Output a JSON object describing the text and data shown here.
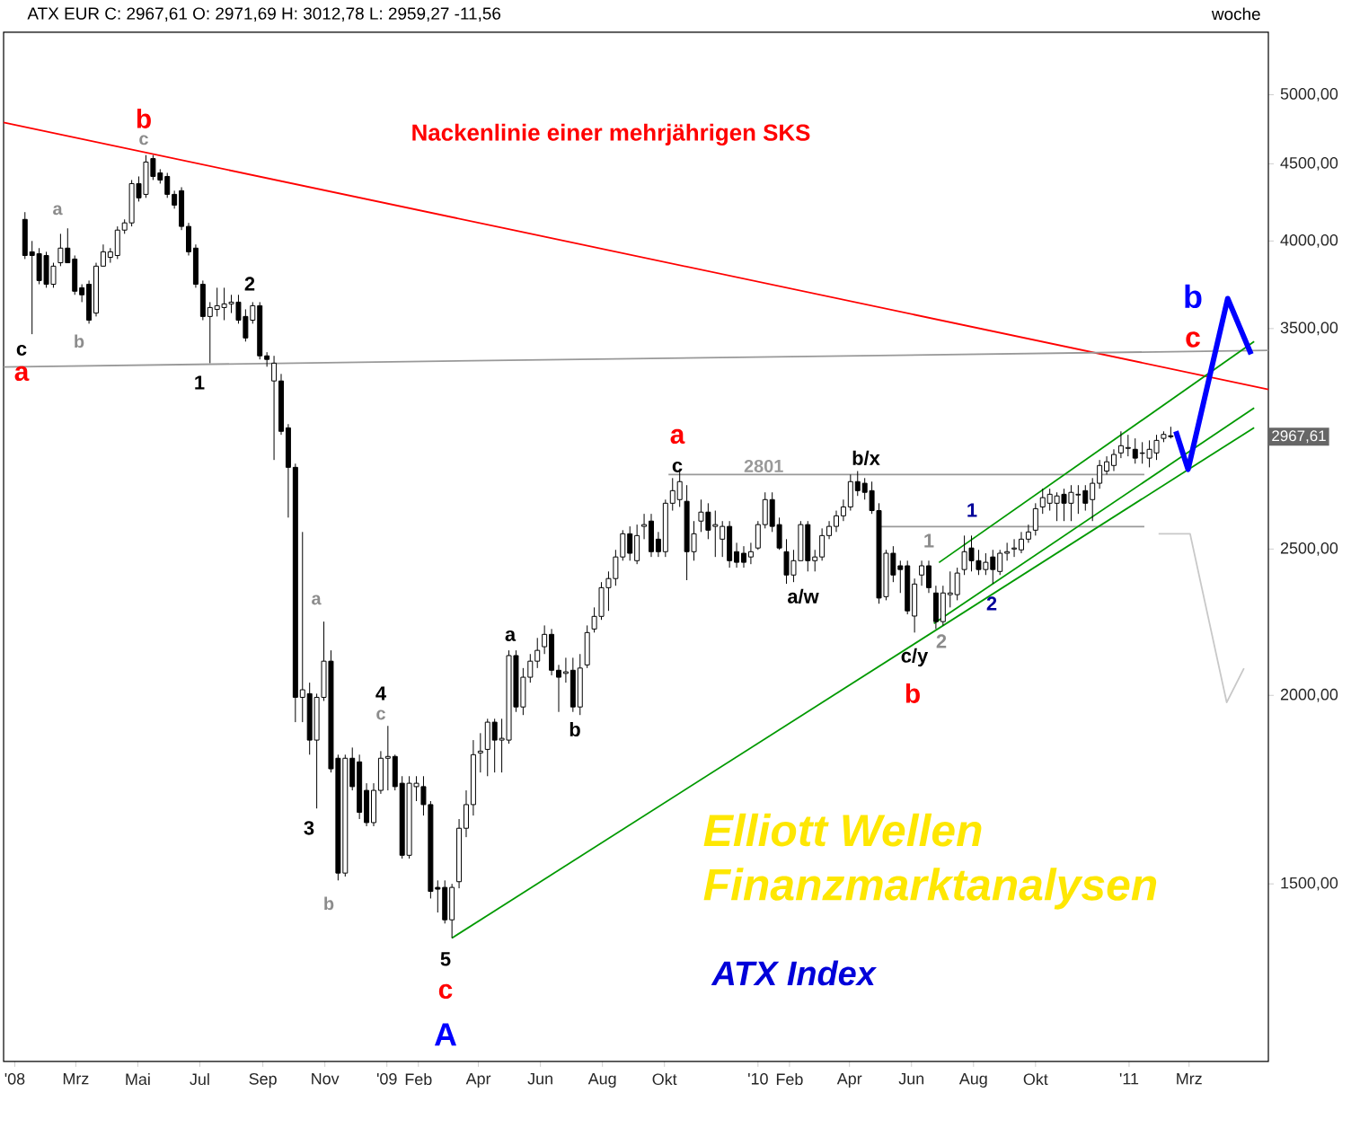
{
  "chart_data": {
    "type": "candlestick",
    "title": "ATX EUR C: 2967,61 O: 2971,69 H: 3012,78 L: 2959,27 -11,56",
    "subtitle": "woche",
    "log": true,
    "xlim": [
      "2007-12-21",
      "2011-05-18"
    ],
    "ylim": [
      1144,
      5500
    ],
    "xticks": [
      {
        "value": "2008-01-01",
        "label": "'08"
      },
      {
        "value": "2008-03-01",
        "label": "Mrz"
      },
      {
        "value": "2008-05-01",
        "label": "Mai"
      },
      {
        "value": "2008-07-01",
        "label": "Jul"
      },
      {
        "value": "2008-09-01",
        "label": "Sep"
      },
      {
        "value": "2008-11-01",
        "label": "Nov"
      },
      {
        "value": "2009-01-01",
        "label": "'09"
      },
      {
        "value": "2009-02-01",
        "label": "Feb"
      },
      {
        "value": "2009-04-01",
        "label": "Apr"
      },
      {
        "value": "2009-06-01",
        "label": "Jun"
      },
      {
        "value": "2009-08-01",
        "label": "Aug"
      },
      {
        "value": "2009-10-01",
        "label": "Okt"
      },
      {
        "value": "2010-01-01",
        "label": "'10"
      },
      {
        "value": "2010-02-01",
        "label": "Feb"
      },
      {
        "value": "2010-04-01",
        "label": "Apr"
      },
      {
        "value": "2010-06-01",
        "label": "Jun"
      },
      {
        "value": "2010-08-01",
        "label": "Aug"
      },
      {
        "value": "2010-10-01",
        "label": "Okt"
      },
      {
        "value": "2011-01-01",
        "label": "'11"
      },
      {
        "value": "2011-03-01",
        "label": "Mrz"
      }
    ],
    "yticks": [
      {
        "value": 1500,
        "label": "1500,00"
      },
      {
        "value": 2000,
        "label": "2000,00"
      },
      {
        "value": 2500,
        "label": "2500,00"
      },
      {
        "value": 3500,
        "label": "3500,00"
      },
      {
        "value": 4000,
        "label": "4000,00"
      },
      {
        "value": 4500,
        "label": "4500,00"
      },
      {
        "value": 5000,
        "label": "5000,00"
      }
    ],
    "x": [
      "2008-01-11",
      "2008-01-18",
      "2008-01-25",
      "2008-02-01",
      "2008-02-08",
      "2008-02-15",
      "2008-02-22",
      "2008-02-29",
      "2008-03-07",
      "2008-03-14",
      "2008-03-21",
      "2008-03-28",
      "2008-04-04",
      "2008-04-11",
      "2008-04-18",
      "2008-04-25",
      "2008-05-02",
      "2008-05-09",
      "2008-05-16",
      "2008-05-23",
      "2008-05-30",
      "2008-06-06",
      "2008-06-13",
      "2008-06-20",
      "2008-06-27",
      "2008-07-04",
      "2008-07-11",
      "2008-07-18",
      "2008-07-25",
      "2008-08-01",
      "2008-08-08",
      "2008-08-15",
      "2008-08-22",
      "2008-08-29",
      "2008-09-05",
      "2008-09-12",
      "2008-09-19",
      "2008-09-26",
      "2008-10-03",
      "2008-10-10",
      "2008-10-17",
      "2008-10-24",
      "2008-10-31",
      "2008-11-07",
      "2008-11-14",
      "2008-11-21",
      "2008-11-28",
      "2008-12-05",
      "2008-12-12",
      "2008-12-19",
      "2008-12-26",
      "2009-01-02",
      "2009-01-09",
      "2009-01-16",
      "2009-01-23",
      "2009-01-30",
      "2009-02-06",
      "2009-02-13",
      "2009-02-20",
      "2009-02-27",
      "2009-03-06",
      "2009-03-13",
      "2009-03-20",
      "2009-03-27",
      "2009-04-03",
      "2009-04-10",
      "2009-04-17",
      "2009-04-24",
      "2009-05-01",
      "2009-05-08",
      "2009-05-15",
      "2009-05-22",
      "2009-05-29",
      "2009-06-05",
      "2009-06-12",
      "2009-06-19",
      "2009-06-26",
      "2009-07-03",
      "2009-07-10",
      "2009-07-17",
      "2009-07-24",
      "2009-07-31",
      "2009-08-07",
      "2009-08-14",
      "2009-08-21",
      "2009-08-28",
      "2009-09-04",
      "2009-09-11",
      "2009-09-18",
      "2009-09-25",
      "2009-10-02",
      "2009-10-09",
      "2009-10-16",
      "2009-10-23",
      "2009-10-30",
      "2009-11-06",
      "2009-11-13",
      "2009-11-20",
      "2009-11-27",
      "2009-12-04",
      "2009-12-11",
      "2009-12-18",
      "2009-12-25",
      "2010-01-01",
      "2010-01-08",
      "2010-01-15",
      "2010-01-22",
      "2010-01-29",
      "2010-02-05",
      "2010-02-12",
      "2010-02-19",
      "2010-02-26",
      "2010-03-05",
      "2010-03-12",
      "2010-03-19",
      "2010-03-26",
      "2010-04-02",
      "2010-04-09",
      "2010-04-16",
      "2010-04-23",
      "2010-04-30",
      "2010-05-07",
      "2010-05-14",
      "2010-05-21",
      "2010-05-28",
      "2010-06-04",
      "2010-06-11",
      "2010-06-18",
      "2010-06-25",
      "2010-07-02",
      "2010-07-09",
      "2010-07-16",
      "2010-07-23",
      "2010-07-30",
      "2010-08-06",
      "2010-08-13",
      "2010-08-20",
      "2010-08-27",
      "2010-09-03",
      "2010-09-10",
      "2010-09-17",
      "2010-09-24",
      "2010-10-01",
      "2010-10-08",
      "2010-10-15",
      "2010-10-22",
      "2010-10-29",
      "2010-11-05",
      "2010-11-12",
      "2010-11-19",
      "2010-11-26",
      "2010-12-03",
      "2010-12-10",
      "2010-12-17",
      "2010-12-24",
      "2010-12-31",
      "2011-01-07",
      "2011-01-14",
      "2011-01-21",
      "2011-01-28",
      "2011-02-04",
      "2011-02-11"
    ],
    "ohlc": [
      [
        4134,
        4180,
        3892,
        3913
      ],
      [
        3935,
        4000,
        3470,
        3913
      ],
      [
        3924,
        3957,
        3745,
        3766
      ],
      [
        3913,
        3935,
        3725,
        3745
      ],
      [
        3745,
        3870,
        3725,
        3850
      ],
      [
        3870,
        4044,
        3850,
        3957
      ],
      [
        3957,
        4078,
        3870,
        3870
      ],
      [
        3892,
        3913,
        3685,
        3705
      ],
      [
        3725,
        3745,
        3644,
        3685
      ],
      [
        3745,
        3766,
        3526,
        3545
      ],
      [
        3584,
        3870,
        3565,
        3850
      ],
      [
        3850,
        3979,
        3850,
        3935
      ],
      [
        3902,
        3957,
        3870,
        3935
      ],
      [
        3913,
        4090,
        3892,
        4067
      ],
      [
        4067,
        4134,
        4044,
        4112
      ],
      [
        4112,
        4390,
        4090,
        4366
      ],
      [
        4366,
        4414,
        4248,
        4272
      ],
      [
        4295,
        4560,
        4272,
        4512
      ],
      [
        4536,
        4560,
        4390,
        4414
      ],
      [
        4438,
        4463,
        4366,
        4390
      ],
      [
        4414,
        4438,
        4272,
        4295
      ],
      [
        4295,
        4319,
        4202,
        4225
      ],
      [
        4319,
        4342,
        4067,
        4090
      ],
      [
        4090,
        4112,
        3913,
        3935
      ],
      [
        3957,
        3979,
        3725,
        3745
      ],
      [
        3745,
        3766,
        3545,
        3565
      ],
      [
        3565,
        3644,
        3320,
        3614
      ],
      [
        3604,
        3725,
        3565,
        3624
      ],
      [
        3614,
        3725,
        3545,
        3634
      ],
      [
        3634,
        3685,
        3584,
        3644
      ],
      [
        3644,
        3685,
        3526,
        3545
      ],
      [
        3565,
        3604,
        3431,
        3450
      ],
      [
        3545,
        3644,
        3526,
        3624
      ],
      [
        3624,
        3644,
        3339,
        3357
      ],
      [
        3357,
        3376,
        3302,
        3339
      ],
      [
        3231,
        3357,
        2864,
        3320
      ],
      [
        3231,
        3266,
        2976,
        2992
      ],
      [
        3008,
        3025,
        2623,
        2832
      ],
      [
        2832,
        2848,
        1920,
        1994
      ],
      [
        1994,
        2566,
        1920,
        2017
      ],
      [
        2005,
        2039,
        1827,
        1868
      ],
      [
        1868,
        2005,
        1683,
        1994
      ],
      [
        1994,
        2238,
        1983,
        2107
      ],
      [
        2107,
        2142,
        1778,
        1788
      ],
      [
        1817,
        1827,
        1508,
        1525
      ],
      [
        1525,
        1827,
        1517,
        1817
      ],
      [
        1817,
        1847,
        1730,
        1740
      ],
      [
        1807,
        1827,
        1656,
        1673
      ],
      [
        1730,
        1749,
        1638,
        1647
      ],
      [
        1647,
        1749,
        1638,
        1730
      ],
      [
        1730,
        1837,
        1721,
        1817
      ],
      [
        1817,
        1909,
        1730,
        1822
      ],
      [
        1822,
        1827,
        1730,
        1740
      ],
      [
        1749,
        1768,
        1559,
        1567
      ],
      [
        1567,
        1768,
        1559,
        1749
      ],
      [
        1740,
        1768,
        1702,
        1749
      ],
      [
        1740,
        1768,
        1665,
        1693
      ],
      [
        1693,
        1702,
        1467,
        1483
      ],
      [
        1492,
        1508,
        1436,
        1488
      ],
      [
        1492,
        1508,
        1412,
        1420
      ],
      [
        1420,
        1500,
        1381,
        1492
      ],
      [
        1505,
        1656,
        1490,
        1633
      ],
      [
        1633,
        1730,
        1611,
        1693
      ],
      [
        1693,
        1868,
        1665,
        1827
      ],
      [
        1832,
        1888,
        1778,
        1837
      ],
      [
        1842,
        1930,
        1768,
        1920
      ],
      [
        1920,
        1930,
        1778,
        1868
      ],
      [
        1868,
        1930,
        1778,
        1873
      ],
      [
        1868,
        2142,
        1858,
        2125
      ],
      [
        2125,
        2142,
        1950,
        1965
      ],
      [
        1965,
        2085,
        1941,
        2056
      ],
      [
        2056,
        2130,
        2039,
        2107
      ],
      [
        2107,
        2183,
        2085,
        2142
      ],
      [
        2154,
        2225,
        2130,
        2195
      ],
      [
        2195,
        2213,
        2062,
        2078
      ],
      [
        2078,
        2095,
        1950,
        2056
      ],
      [
        2068,
        2118,
        2039,
        2073
      ],
      [
        2078,
        2118,
        1950,
        1965
      ],
      [
        1965,
        2130,
        1941,
        2085
      ],
      [
        2095,
        2225,
        2085,
        2201
      ],
      [
        2213,
        2287,
        2201,
        2256
      ],
      [
        2256,
        2377,
        2244,
        2357
      ],
      [
        2357,
        2416,
        2275,
        2390
      ],
      [
        2390,
        2497,
        2364,
        2470
      ],
      [
        2470,
        2573,
        2456,
        2559
      ],
      [
        2559,
        2588,
        2456,
        2484
      ],
      [
        2456,
        2595,
        2443,
        2552
      ],
      [
        2588,
        2638,
        2538,
        2595
      ],
      [
        2609,
        2638,
        2470,
        2490
      ],
      [
        2538,
        2566,
        2470,
        2490
      ],
      [
        2490,
        2696,
        2470,
        2681
      ],
      [
        2681,
        2786,
        2651,
        2733
      ],
      [
        2696,
        2816,
        2666,
        2771
      ],
      [
        2689,
        2756,
        2384,
        2490
      ],
      [
        2490,
        2609,
        2456,
        2559
      ],
      [
        2609,
        2696,
        2566,
        2645
      ],
      [
        2645,
        2681,
        2538,
        2573
      ],
      [
        2588,
        2651,
        2470,
        2595
      ],
      [
        2538,
        2609,
        2470,
        2588
      ],
      [
        2588,
        2609,
        2430,
        2456
      ],
      [
        2490,
        2524,
        2430,
        2450
      ],
      [
        2484,
        2511,
        2430,
        2450
      ],
      [
        2470,
        2524,
        2443,
        2490
      ],
      [
        2504,
        2609,
        2497,
        2595
      ],
      [
        2595,
        2726,
        2580,
        2696
      ],
      [
        2696,
        2726,
        2566,
        2588
      ],
      [
        2595,
        2623,
        2497,
        2504
      ],
      [
        2490,
        2538,
        2371,
        2403
      ],
      [
        2403,
        2497,
        2377,
        2456
      ],
      [
        2456,
        2609,
        2456,
        2595
      ],
      [
        2595,
        2609,
        2416,
        2456
      ],
      [
        2456,
        2497,
        2416,
        2470
      ],
      [
        2470,
        2580,
        2456,
        2552
      ],
      [
        2552,
        2609,
        2538,
        2588
      ],
      [
        2588,
        2651,
        2566,
        2630
      ],
      [
        2630,
        2696,
        2609,
        2666
      ],
      [
        2666,
        2801,
        2651,
        2771
      ],
      [
        2771,
        2816,
        2711,
        2733
      ],
      [
        2764,
        2786,
        2696,
        2726
      ],
      [
        2733,
        2771,
        2638,
        2651
      ],
      [
        2651,
        2681,
        2300,
        2320
      ],
      [
        2325,
        2497,
        2312,
        2484
      ],
      [
        2484,
        2511,
        2377,
        2403
      ],
      [
        2437,
        2456,
        2338,
        2423
      ],
      [
        2437,
        2456,
        2263,
        2275
      ],
      [
        2257,
        2390,
        2201,
        2370
      ],
      [
        2403,
        2456,
        2364,
        2437
      ],
      [
        2437,
        2456,
        2338,
        2357
      ],
      [
        2338,
        2364,
        2213,
        2238
      ],
      [
        2238,
        2364,
        2225,
        2338
      ],
      [
        2332,
        2416,
        2287,
        2338
      ],
      [
        2332,
        2430,
        2312,
        2410
      ],
      [
        2423,
        2552,
        2403,
        2490
      ],
      [
        2504,
        2552,
        2416,
        2456
      ],
      [
        2456,
        2497,
        2403,
        2423
      ],
      [
        2423,
        2484,
        2403,
        2450
      ],
      [
        2470,
        2497,
        2371,
        2423
      ],
      [
        2416,
        2497,
        2403,
        2484
      ],
      [
        2484,
        2524,
        2456,
        2490
      ],
      [
        2500,
        2538,
        2470,
        2504
      ],
      [
        2497,
        2566,
        2484,
        2538
      ],
      [
        2538,
        2595,
        2524,
        2566
      ],
      [
        2573,
        2681,
        2552,
        2659
      ],
      [
        2666,
        2741,
        2638,
        2704
      ],
      [
        2681,
        2741,
        2651,
        2718
      ],
      [
        2681,
        2726,
        2609,
        2711
      ],
      [
        2718,
        2741,
        2609,
        2681
      ],
      [
        2681,
        2756,
        2609,
        2726
      ],
      [
        2715,
        2756,
        2638,
        2718
      ],
      [
        2733,
        2756,
        2651,
        2681
      ],
      [
        2696,
        2786,
        2609,
        2764
      ],
      [
        2764,
        2864,
        2741,
        2840
      ],
      [
        2816,
        2880,
        2801,
        2856
      ],
      [
        2840,
        2911,
        2816,
        2888
      ],
      [
        2895,
        2992,
        2872,
        2927
      ],
      [
        2915,
        2976,
        2880,
        2919
      ],
      [
        2911,
        2960,
        2848,
        2872
      ],
      [
        2893,
        2943,
        2848,
        2895
      ],
      [
        2872,
        2951,
        2832,
        2911
      ],
      [
        2895,
        2976,
        2864,
        2951
      ],
      [
        2960,
        2992,
        2943,
        2978
      ],
      [
        2971.69,
        3012.78,
        2959.27,
        2967.61
      ]
    ],
    "series": [
      {
        "type": "line",
        "color": "#ff0000",
        "x": [
          "2007-12-21",
          "2011-05-18"
        ],
        "values": [
          4792,
          3190
        ]
      },
      {
        "type": "line",
        "color": "#999999",
        "x": [
          "2007-12-21",
          "2011-05-18"
        ],
        "values": [
          3301,
          3385
        ]
      },
      {
        "type": "line",
        "name": "2801",
        "color": "#999999",
        "x": [
          "2009-10-05",
          "2011-01-16"
        ],
        "values": [
          2801,
          2801
        ]
      },
      {
        "type": "line",
        "color": "#999999",
        "x": [
          "2010-05-01",
          "2011-01-16"
        ],
        "values": [
          2587,
          2587
        ]
      },
      {
        "type": "line",
        "color": "#009900",
        "x": [
          "2009-03-06",
          "2011-05-04"
        ],
        "values": [
          1381,
          3009
        ]
      },
      {
        "type": "line",
        "color": "#009900",
        "x": [
          "2010-06-23",
          "2011-05-04"
        ],
        "values": [
          2232,
          3101
        ]
      },
      {
        "type": "line",
        "color": "#009900",
        "x": [
          "2010-06-28",
          "2011-05-04"
        ],
        "values": [
          2449,
          3431
        ]
      },
      {
        "type": "line",
        "color": "#0000ff",
        "x": [
          "2011-02-16",
          "2011-02-28",
          "2011-04-08",
          "2011-05-01"
        ],
        "values": [
          2992,
          2823,
          3664,
          3366
        ]
      },
      {
        "type": "line",
        "color": "#c8c8c8",
        "x": [
          "2011-01-30",
          "2011-03-02",
          "2011-04-07",
          "2011-04-24"
        ],
        "values": [
          2559,
          2559,
          1979,
          2084
        ]
      }
    ],
    "annotations": [
      "Nackenlinie einer mehrjährigen SKS",
      "b",
      "c",
      "a",
      "b",
      "c",
      "a",
      "2",
      "1",
      "a",
      "3",
      "b",
      "4",
      "c",
      "5",
      "c",
      "A",
      "a",
      "b",
      "a",
      "c",
      "b/x",
      "a/w",
      "1",
      "1",
      "2",
      "c/y",
      "b",
      "2",
      "b",
      "c",
      "Elliott Wellen",
      "Finanzmarktanalysen",
      "ATX Index",
      "2967,61"
    ]
  }
}
